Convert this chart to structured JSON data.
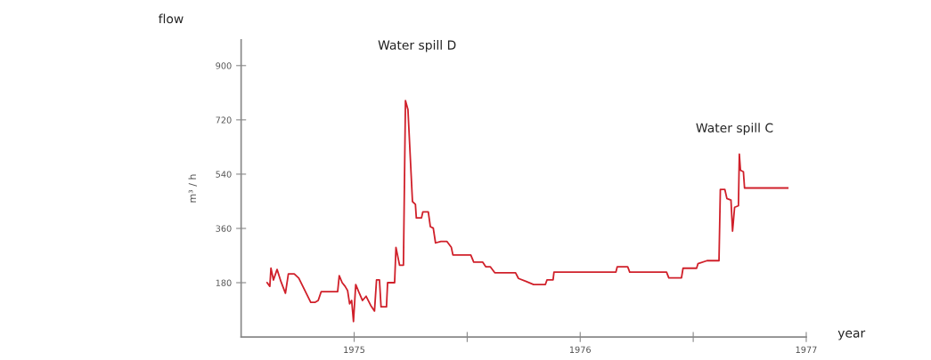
{
  "chart_data": {
    "type": "line",
    "ylabel": "m³ / h",
    "xlabel": "year",
    "annotations": [
      "flow",
      "Water spill D",
      "Water spill C"
    ],
    "xlim": [
      1975,
      1977.5
    ],
    "ylim": [
      0,
      985
    ],
    "xticks": [
      {
        "value": 1975.5,
        "label": "1975"
      },
      {
        "value": 1976,
        "label": null
      },
      {
        "value": 1976.5,
        "label": "1976"
      },
      {
        "value": 1977,
        "label": null
      },
      {
        "value": 1977.5,
        "label": "1977"
      }
    ],
    "yticks": [
      180,
      360,
      540,
      720,
      900
    ],
    "series": [
      {
        "color": "#d0202a",
        "x": [
          1975.115,
          1975.127,
          1975.132,
          1975.143,
          1975.159,
          1975.176,
          1975.196,
          1975.209,
          1975.235,
          1975.255,
          1975.308,
          1975.328,
          1975.341,
          1975.354,
          1975.427,
          1975.434,
          1975.447,
          1975.46,
          1975.471,
          1975.48,
          1975.489,
          1975.497,
          1975.507,
          1975.52,
          1975.537,
          1975.553,
          1975.573,
          1975.59,
          1975.599,
          1975.612,
          1975.619,
          1975.643,
          1975.648,
          1975.679,
          1975.685,
          1975.701,
          1975.718,
          1975.727,
          1975.738,
          1975.758,
          1975.771,
          1975.775,
          1975.798,
          1975.804,
          1975.828,
          1975.837,
          1975.85,
          1975.86,
          1975.884,
          1975.91,
          1975.93,
          1975.937,
          1976.016,
          1976.029,
          1976.069,
          1976.082,
          1976.102,
          1976.122,
          1976.214,
          1976.227,
          1976.261,
          1976.294,
          1976.346,
          1976.353,
          1976.38,
          1976.384,
          1976.658,
          1976.664,
          1976.71,
          1976.719,
          1976.882,
          1976.892,
          1976.948,
          1976.955,
          1977.015,
          1977.021,
          1977.061,
          1977.114,
          1977.12,
          1977.14,
          1977.149,
          1977.167,
          1977.174,
          1977.183,
          1977.2,
          1977.204,
          1977.209,
          1977.222,
          1977.227,
          1977.418
        ],
        "values": [
          180,
          168,
          228,
          189,
          224,
          184,
          145,
          209,
          209,
          195,
          115,
          115,
          121,
          150,
          150,
          203,
          180,
          168,
          154,
          110,
          121,
          51,
          174,
          150,
          121,
          135,
          105,
          86,
          189,
          189,
          100,
          100,
          180,
          180,
          297,
          238,
          238,
          784,
          754,
          449,
          440,
          395,
          395,
          415,
          415,
          366,
          361,
          312,
          317,
          317,
          297,
          272,
          272,
          248,
          248,
          233,
          233,
          213,
          213,
          194,
          184,
          174,
          174,
          189,
          189,
          215,
          215,
          233,
          233,
          215,
          215,
          196,
          196,
          228,
          228,
          243,
          253,
          253,
          489,
          489,
          459,
          454,
          351,
          430,
          435,
          606,
          553,
          548,
          494,
          494
        ]
      }
    ]
  }
}
